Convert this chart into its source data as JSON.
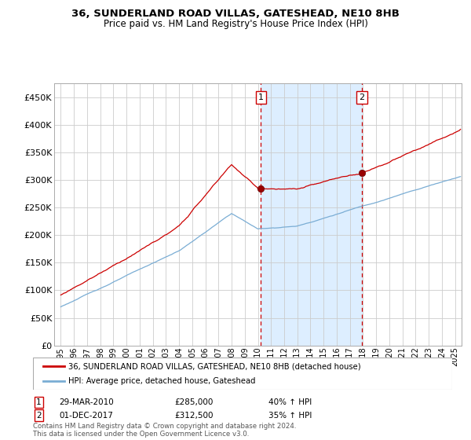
{
  "title1": "36, SUNDERLAND ROAD VILLAS, GATESHEAD, NE10 8HB",
  "title2": "Price paid vs. HM Land Registry's House Price Index (HPI)",
  "legend_line1": "36, SUNDERLAND ROAD VILLAS, GATESHEAD, NE10 8HB (detached house)",
  "legend_line2": "HPI: Average price, detached house, Gateshead",
  "annotation1": {
    "num": "1",
    "date": "29-MAR-2010",
    "price": "£285,000",
    "change": "40% ↑ HPI"
  },
  "annotation2": {
    "num": "2",
    "date": "01-DEC-2017",
    "price": "£312,500",
    "change": "35% ↑ HPI"
  },
  "event1_x": 2010.23,
  "event1_y": 285000,
  "event2_x": 2017.92,
  "event2_y": 312500,
  "shaded_start": 2010.23,
  "shaded_end": 2017.92,
  "ylim": [
    0,
    475000
  ],
  "xlim_start": 1994.5,
  "xlim_end": 2025.5,
  "red_color": "#cc0000",
  "blue_color": "#7aadd4",
  "shade_color": "#ddeeff",
  "footer": "Contains HM Land Registry data © Crown copyright and database right 2024.\nThis data is licensed under the Open Government Licence v3.0.",
  "yticks": [
    0,
    50000,
    100000,
    150000,
    200000,
    250000,
    300000,
    350000,
    400000,
    450000
  ],
  "ytick_labels": [
    "£0",
    "£50K",
    "£100K",
    "£150K",
    "£200K",
    "£250K",
    "£300K",
    "£350K",
    "£400K",
    "£450K"
  ],
  "xtick_years": [
    1995,
    1996,
    1997,
    1998,
    1999,
    2000,
    2001,
    2002,
    2003,
    2004,
    2005,
    2006,
    2007,
    2008,
    2009,
    2010,
    2011,
    2012,
    2013,
    2014,
    2015,
    2016,
    2017,
    2018,
    2019,
    2020,
    2021,
    2022,
    2023,
    2024,
    2025
  ]
}
